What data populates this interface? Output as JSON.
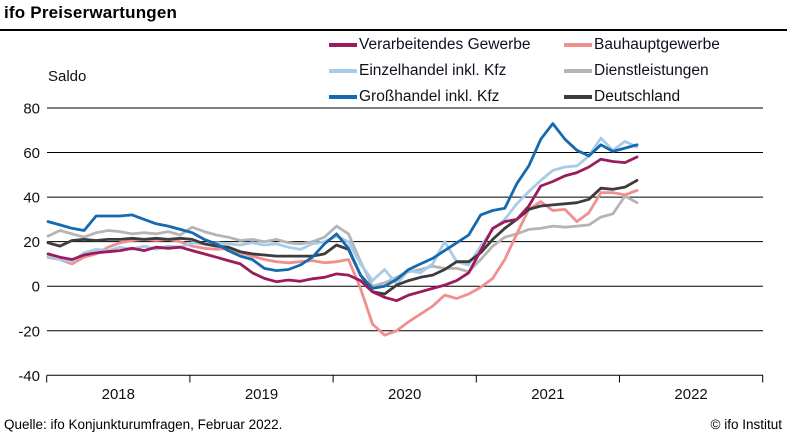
{
  "title": "ifo Preiserwartungen",
  "axis": {
    "unit_label": "Saldo",
    "y_ticks": [
      80,
      60,
      40,
      20,
      0,
      -20,
      -40
    ],
    "x_year_labels": [
      "2018",
      "2019",
      "2020",
      "2021",
      "2022"
    ]
  },
  "footer": {
    "source": "Quelle: ifo Konjunkturumfragen, Februar 2022.",
    "copyright": "© ifo Institut"
  },
  "legend": {
    "items": [
      {
        "label": "Verarbeitendes Gewerbe",
        "color": "#9c1b5c"
      },
      {
        "label": "Einzelhandel inkl. Kfz",
        "color": "#a8cbe8"
      },
      {
        "label": "Großhandel inkl. Kfz",
        "color": "#1569b1"
      },
      {
        "label": "Bauhauptgewerbe",
        "color": "#ef8f8f"
      },
      {
        "label": "Dienstleistungen",
        "color": "#b5b5b5"
      },
      {
        "label": "Deutschland",
        "color": "#3c3c3c"
      }
    ]
  },
  "chart_data": {
    "type": "line",
    "title": "ifo Preiserwartungen",
    "ylabel": "Saldo",
    "ylim": [
      -40,
      80
    ],
    "grid": "horizontal",
    "legend_position": "top",
    "x_monthly_from": "2018-01",
    "x_monthly_to": "2022-02",
    "x_axis_years": [
      "2018",
      "2019",
      "2020",
      "2021",
      "2022"
    ],
    "series": [
      {
        "name": "Dienstleistungen",
        "color": "#b5b5b5",
        "values": [
          22.5,
          25,
          23.5,
          22,
          24,
          25,
          24.5,
          23.5,
          24,
          23.5,
          24.5,
          23,
          26.5,
          24.5,
          23,
          22,
          20.5,
          21,
          20,
          21,
          19.5,
          19,
          20,
          22,
          27,
          23.5,
          11,
          0,
          1.5,
          4,
          6.5,
          7.5,
          9,
          8,
          8,
          6.5,
          12,
          18,
          22,
          23.5,
          25.5,
          26,
          27,
          26.5,
          27,
          27.5,
          31,
          32.5,
          40.5,
          37.5
        ]
      },
      {
        "name": "Bauhauptgewerbe",
        "color": "#ef8f8f",
        "values": [
          13,
          12,
          10,
          13,
          14.5,
          17.5,
          19.5,
          20.5,
          21,
          20.5,
          21,
          20,
          18,
          17,
          16.5,
          17,
          15,
          13.5,
          12,
          11,
          10.5,
          11,
          11.5,
          10.5,
          11,
          12,
          -1,
          -17,
          -22,
          -20,
          -16,
          -12.5,
          -9,
          -4,
          -5.5,
          -3.5,
          -0.5,
          3.5,
          12,
          23.5,
          34.5,
          38,
          34,
          34.5,
          29,
          33,
          42,
          42,
          41,
          43
        ]
      },
      {
        "name": "Einzelhandel inkl. Kfz",
        "color": "#a8cbe8",
        "values": [
          13.5,
          12,
          11,
          15,
          16.5,
          16,
          17.5,
          16.5,
          18,
          16.5,
          18,
          17.5,
          19.5,
          19,
          19.5,
          19,
          18.5,
          19.5,
          18.5,
          19,
          17.5,
          16.5,
          19,
          20,
          22.5,
          20,
          10,
          2.5,
          7.5,
          1,
          7,
          6,
          10,
          20,
          11,
          9.5,
          18,
          25.5,
          30,
          37,
          42.5,
          47.5,
          52,
          53.5,
          54,
          58.5,
          66.5,
          61,
          65,
          62.5
        ]
      },
      {
        "name": "Deutschland",
        "color": "#3c3c3c",
        "values": [
          19.5,
          18,
          20.5,
          21,
          20.5,
          21,
          21,
          21.5,
          21,
          21.5,
          21,
          21.5,
          21,
          19,
          18,
          17.5,
          15.5,
          14.5,
          14,
          13.5,
          13.5,
          13.5,
          13.5,
          14.5,
          18.5,
          16.5,
          5,
          -2.5,
          -3.5,
          0.5,
          2.5,
          4,
          5,
          7.5,
          11,
          11,
          15,
          21,
          26,
          30,
          34.5,
          36,
          36.5,
          37,
          37.5,
          39,
          44,
          43.5,
          44.5,
          47.5
        ]
      },
      {
        "name": "Verarbeitendes Gewerbe",
        "color": "#9c1b5c",
        "values": [
          14.5,
          13,
          12,
          14,
          15,
          15.5,
          16,
          17,
          16,
          17.5,
          17,
          17.5,
          16,
          14.5,
          13,
          11.5,
          10,
          6,
          3.5,
          2,
          2.8,
          2.2,
          3.3,
          4,
          5.5,
          5,
          2.5,
          -2.5,
          -5,
          -6.5,
          -4,
          -2.5,
          -1,
          0.5,
          2.5,
          6,
          16,
          26,
          29,
          30,
          36,
          45,
          47,
          49.5,
          51,
          53.5,
          57,
          56,
          55.5,
          58
        ]
      },
      {
        "name": "Großhandel inkl. Kfz",
        "color": "#1569b1",
        "values": [
          29,
          27.5,
          26,
          25,
          31.5,
          31.5,
          31.5,
          32,
          30,
          28,
          27,
          25.5,
          24,
          21,
          19,
          16,
          13.5,
          12,
          8,
          7,
          7.5,
          9.5,
          13,
          19,
          23.5,
          17,
          5,
          -1,
          0,
          3,
          7.5,
          10,
          12.5,
          16,
          19.5,
          23,
          32,
          34,
          35,
          46,
          54,
          66,
          73,
          66,
          61,
          58.5,
          63.5,
          60.5,
          62,
          63.5
        ]
      }
    ]
  }
}
